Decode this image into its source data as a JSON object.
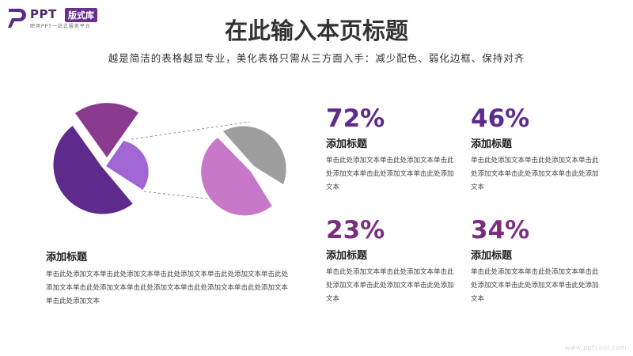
{
  "logo": {
    "name": "PPT",
    "badge": "版式库",
    "tagline": "职场PPT一站式服务平台"
  },
  "title": "在此输入本页标题",
  "subtitle": "越是简洁的表格越显专业，美化表格只需从三方面入手：减少配色、弱化边框、保持对齐",
  "chart_data": {
    "type": "pie",
    "note_pies": [
      {
        "slices": [
          {
            "color": "#5e2a8c"
          },
          {
            "color": "#8b3b8f"
          },
          {
            "color": "#a066d3"
          }
        ]
      },
      {
        "slices": [
          {
            "color": "#c878c8"
          },
          {
            "color": "#9e9e9e"
          }
        ]
      }
    ]
  },
  "left_block": {
    "title": "添加标题",
    "body": "单击此处添加文本单击此处添加文本单击此处添加文本单击此处添加文本单击此处添加文本单击此处添加文本单击此处添加文本单击此处添加文本单击此处添加文本单击此处添加文本"
  },
  "stats": [
    {
      "value": "72%",
      "title": "添加标题",
      "body": "单击此处添加文本单击此处添加文本单击此处添加文本单击此处添加文本单击此处添加文本",
      "color": "#5e2a8c"
    },
    {
      "value": "46%",
      "title": "添加标题",
      "body": "单击此处添加文本单击此处添加文本单击此处添加文本单击此处添加文本单击此处添加文本",
      "color": "#5e2a8c"
    },
    {
      "value": "23%",
      "title": "添加标题",
      "body": "单击此处添加文本单击此处添加文本单击此处添加文本单击此处添加文本单击此处添加文本",
      "color": "#7b2e7f"
    },
    {
      "value": "34%",
      "title": "添加标题",
      "body": "单击此处添加文本单击此处添加文本单击此处添加文本单击此处添加文本单击此处添加文本",
      "color": "#7b2e7f"
    }
  ],
  "footer_url": "www.pptcool.com"
}
